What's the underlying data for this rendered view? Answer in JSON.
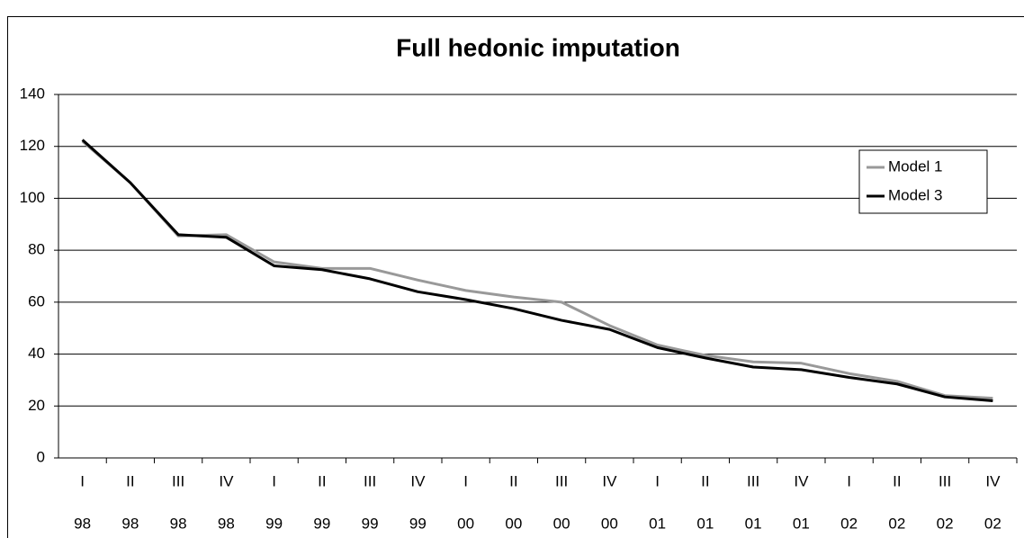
{
  "chart_data": {
    "type": "line",
    "title": "Full hedonic imputation",
    "categories": [
      [
        "I",
        "98"
      ],
      [
        "II",
        "98"
      ],
      [
        "III",
        "98"
      ],
      [
        "IV",
        "98"
      ],
      [
        "I",
        "99"
      ],
      [
        "II",
        "99"
      ],
      [
        "III",
        "99"
      ],
      [
        "IV",
        "99"
      ],
      [
        "I",
        "00"
      ],
      [
        "II",
        "00"
      ],
      [
        "III",
        "00"
      ],
      [
        "IV",
        "00"
      ],
      [
        "I",
        "01"
      ],
      [
        "II",
        "01"
      ],
      [
        "III",
        "01"
      ],
      [
        "IV",
        "01"
      ],
      [
        "I",
        "02"
      ],
      [
        "II",
        "02"
      ],
      [
        "III",
        "02"
      ],
      [
        "IV",
        "02"
      ]
    ],
    "series": [
      {
        "name": "Model 1",
        "color": "#999999",
        "values": [
          122,
          106,
          85.5,
          86,
          75.5,
          73,
          73,
          68.5,
          64.5,
          62,
          60,
          51,
          43.5,
          39.5,
          37,
          36.5,
          32.5,
          29.5,
          24,
          23
        ]
      },
      {
        "name": "Model 3",
        "color": "#000000",
        "values": [
          122.5,
          106,
          86,
          85,
          74,
          72.5,
          69,
          64,
          61,
          57.5,
          53,
          49.5,
          42.5,
          38.5,
          35,
          34,
          31,
          28.5,
          23.5,
          22
        ]
      }
    ],
    "ylim": [
      0,
      140
    ],
    "yticks": [
      0,
      20,
      40,
      60,
      80,
      100,
      120,
      140
    ],
    "grid": true,
    "legend": "right"
  }
}
